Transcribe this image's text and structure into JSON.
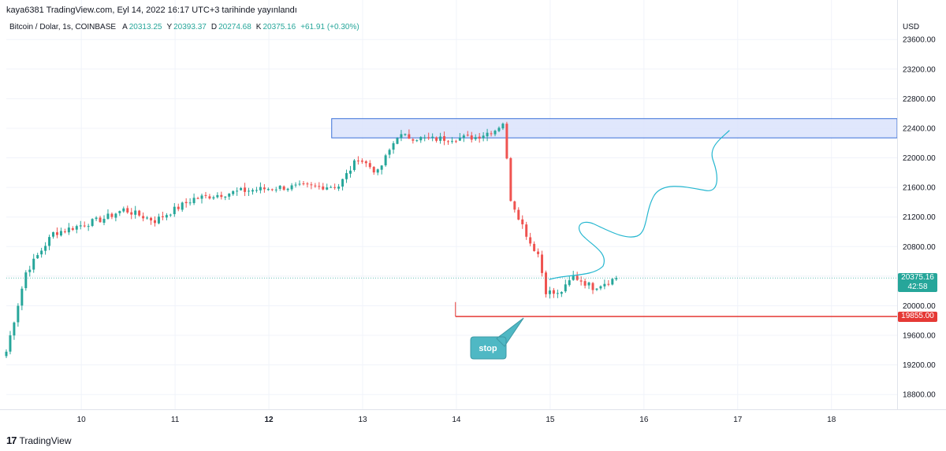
{
  "header": {
    "publish_line": "kaya6381 TradingView.com, Eyl 14, 2022 16:17 UTC+3 tarihinde yayınlandı",
    "symbol": "Bitcoin / Dolar, 1s, COINBASE",
    "ohlc": [
      {
        "key": "A",
        "value": "20313.25"
      },
      {
        "key": "Y",
        "value": "20393.37"
      },
      {
        "key": "D",
        "value": "20274.68"
      },
      {
        "key": "K",
        "value": "20375.16"
      }
    ],
    "change": "+61.91 (+0.30%)"
  },
  "footer": {
    "logo_mark": "17",
    "logo_text": "TradingView"
  },
  "colors": {
    "up": "#26a69a",
    "down": "#ef5350",
    "zone_fill": "#dbe3fb",
    "zone_stroke": "#3a6fd8",
    "drawing": "#26b7d0",
    "stop_line": "#e53935",
    "callout": "#4fb8c4",
    "grid": "#f0f3fa"
  },
  "chart_data": {
    "type": "candlestick",
    "currency": "USD",
    "ylim": [
      18600,
      23900
    ],
    "yticks": [
      "23600.00",
      "23200.00",
      "22800.00",
      "22400.00",
      "22000.00",
      "21600.00",
      "21200.00",
      "20800.00",
      "20400.00",
      "20000.00",
      "19600.00",
      "19200.00",
      "18800.00"
    ],
    "xticks": [
      {
        "label": "10",
        "day": 10,
        "bold": false
      },
      {
        "label": "11",
        "day": 11,
        "bold": false
      },
      {
        "label": "12",
        "day": 12,
        "bold": true
      },
      {
        "label": "13",
        "day": 13,
        "bold": false
      },
      {
        "label": "14",
        "day": 14,
        "bold": false
      },
      {
        "label": "15",
        "day": 15,
        "bold": false
      },
      {
        "label": "16",
        "day": 16,
        "bold": false
      },
      {
        "label": "17",
        "day": 17,
        "bold": false
      },
      {
        "label": "18",
        "day": 18,
        "bold": false
      }
    ],
    "xlim_days": [
      9.2,
      18.7
    ],
    "candle_start_day": 9.2,
    "candle_step_days": 0.0417,
    "anchors": [
      {
        "i": 0,
        "p": 19380
      },
      {
        "i": 5,
        "p": 20450
      },
      {
        "i": 12,
        "p": 20980
      },
      {
        "i": 25,
        "p": 21180
      },
      {
        "i": 30,
        "p": 21300
      },
      {
        "i": 38,
        "p": 21150
      },
      {
        "i": 48,
        "p": 21450
      },
      {
        "i": 60,
        "p": 21550
      },
      {
        "i": 70,
        "p": 21600
      },
      {
        "i": 85,
        "p": 21620
      },
      {
        "i": 90,
        "p": 22000
      },
      {
        "i": 95,
        "p": 21800
      },
      {
        "i": 100,
        "p": 22300
      },
      {
        "i": 108,
        "p": 22250
      },
      {
        "i": 120,
        "p": 22280
      },
      {
        "i": 125,
        "p": 22380
      },
      {
        "i": 127,
        "p": 22480
      },
      {
        "i": 129,
        "p": 21450
      },
      {
        "i": 134,
        "p": 20850
      },
      {
        "i": 136,
        "p": 20700
      },
      {
        "i": 138,
        "p": 20200
      },
      {
        "i": 141,
        "p": 20150
      },
      {
        "i": 143,
        "p": 20250
      },
      {
        "i": 145,
        "p": 20400
      },
      {
        "i": 150,
        "p": 20250
      },
      {
        "i": 156,
        "p": 20375.16
      }
    ],
    "supply_zone": {
      "top": 22530,
      "bottom": 22270,
      "start_day": 12.67
    },
    "stop_line": {
      "price": 19855.0,
      "label": "19855.00",
      "start_day": 13.99,
      "end_day": 14.8
    },
    "current_price": {
      "label": "20375.16",
      "countdown": "42:58",
      "price": 20375.16
    },
    "annotation": {
      "text": "stop"
    }
  }
}
